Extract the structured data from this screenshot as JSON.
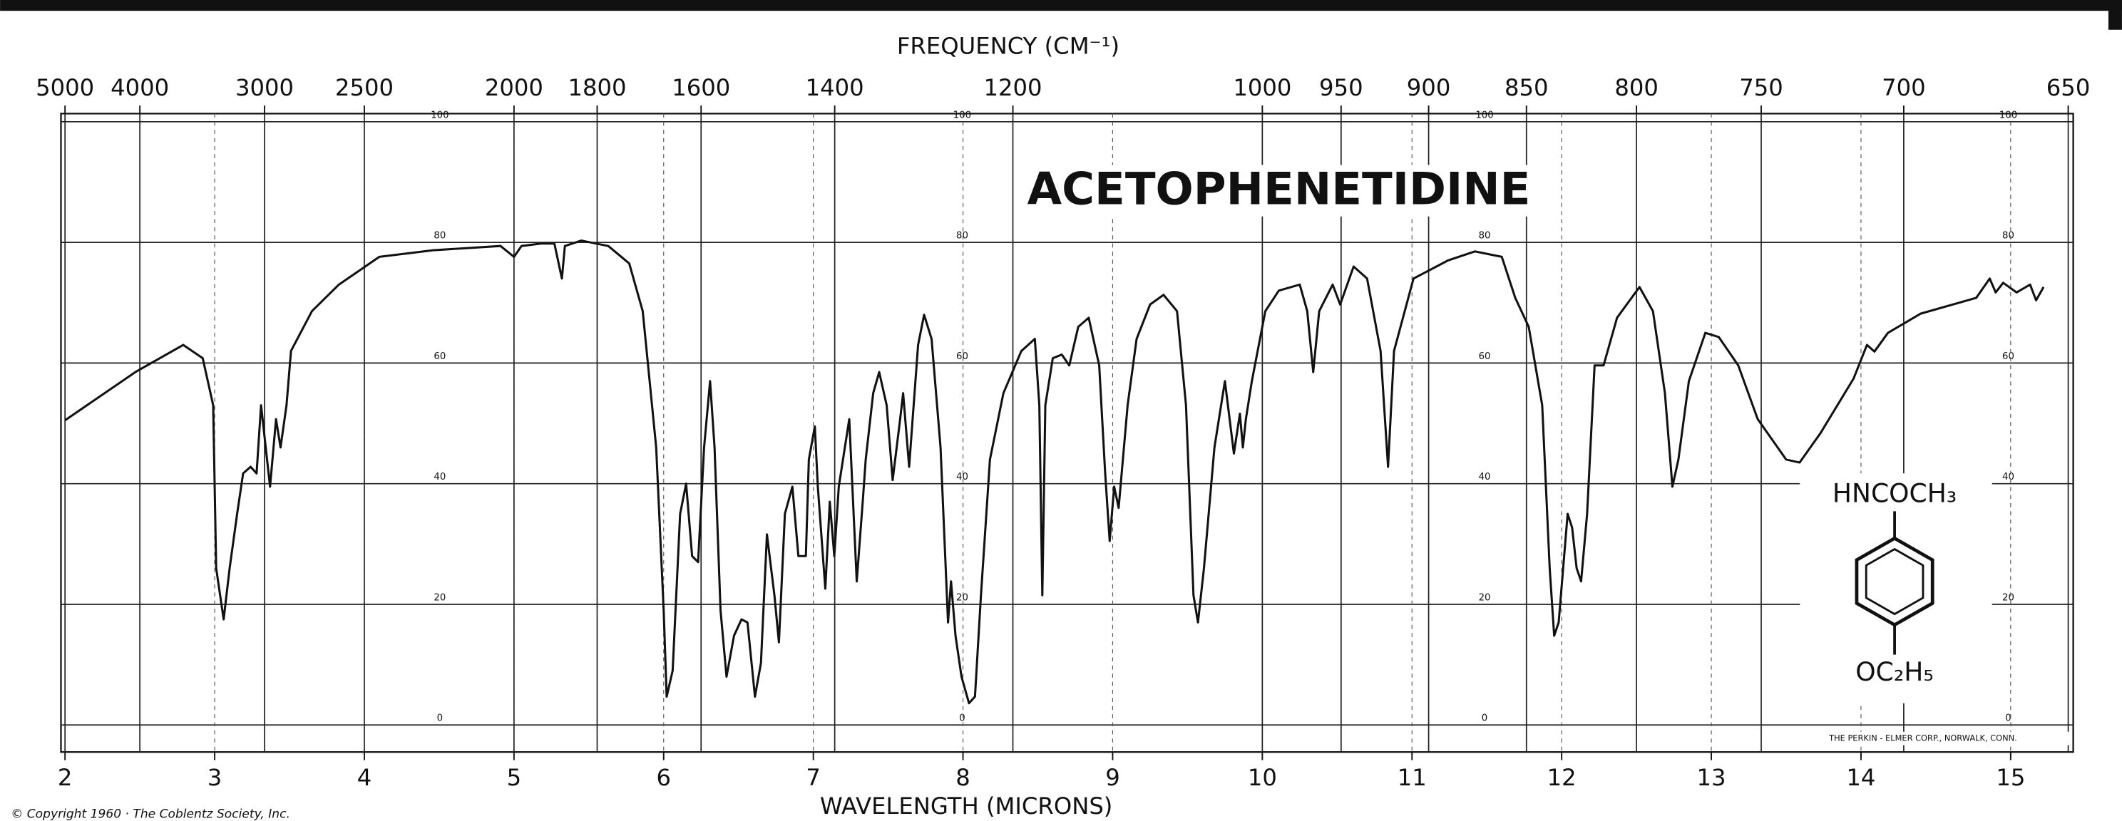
{
  "chart_data": {
    "type": "line",
    "title": "ACETOPHENETIDINE",
    "xlabel": "WAVELENGTH (MICRONS)",
    "x2label": "FREQUENCY (CM⁻¹)",
    "xlim": [
      2,
      15.4
    ],
    "ylim": [
      0,
      100
    ],
    "xticks": [
      2,
      3,
      4,
      5,
      6,
      7,
      8,
      9,
      10,
      11,
      12,
      13,
      14,
      15
    ],
    "x2ticks": [
      5000,
      4000,
      3000,
      2500,
      2000,
      1800,
      1600,
      1400,
      1200,
      1000,
      950,
      900,
      850,
      800,
      750,
      700,
      650
    ],
    "yticks": [
      0,
      20,
      40,
      60,
      80,
      100
    ],
    "grid": true,
    "color": "#111111",
    "x": [
      2.0,
      2.47,
      2.79,
      2.92,
      2.99,
      3.01,
      3.06,
      3.1,
      3.15,
      3.19,
      3.24,
      3.28,
      3.31,
      3.35,
      3.37,
      3.41,
      3.44,
      3.48,
      3.51,
      3.65,
      3.83,
      4.1,
      4.46,
      4.91,
      5.0,
      5.05,
      5.18,
      5.27,
      5.32,
      5.34,
      5.45,
      5.63,
      5.77,
      5.86,
      5.95,
      6.0,
      6.02,
      6.06,
      6.11,
      6.15,
      6.19,
      6.23,
      6.27,
      6.31,
      6.34,
      6.38,
      6.42,
      6.47,
      6.52,
      6.56,
      6.61,
      6.65,
      6.69,
      6.74,
      6.77,
      6.81,
      6.86,
      6.9,
      6.95,
      6.97,
      7.01,
      7.03,
      7.08,
      7.11,
      7.14,
      7.17,
      7.24,
      7.29,
      7.33,
      7.35,
      7.4,
      7.44,
      7.49,
      7.53,
      7.58,
      7.6,
      7.64,
      7.7,
      7.74,
      7.79,
      7.85,
      7.9,
      7.92,
      7.95,
      7.99,
      8.04,
      8.08,
      8.12,
      8.18,
      8.27,
      8.39,
      8.48,
      8.51,
      8.53,
      8.55,
      8.6,
      8.66,
      8.71,
      8.77,
      8.84,
      8.91,
      8.95,
      8.98,
      9.01,
      9.04,
      9.1,
      9.16,
      9.25,
      9.34,
      9.43,
      9.49,
      9.54,
      9.57,
      9.61,
      9.68,
      9.75,
      9.77,
      9.81,
      9.85,
      9.87,
      9.89,
      9.93,
      10.02,
      10.11,
      10.25,
      10.3,
      10.34,
      10.38,
      10.47,
      10.52,
      10.61,
      10.7,
      10.79,
      10.84,
      10.88,
      11.01,
      11.24,
      11.42,
      11.6,
      11.69,
      11.78,
      11.87,
      11.92,
      11.95,
      11.98,
      12.04,
      12.07,
      12.1,
      12.13,
      12.17,
      12.22,
      12.28,
      12.37,
      12.52,
      12.61,
      12.69,
      12.74,
      12.78,
      12.85,
      12.96,
      13.05,
      13.18,
      13.31,
      13.5,
      13.59,
      13.73,
      13.95,
      14.04,
      14.09,
      14.18,
      14.4,
      14.77,
      14.86,
      14.9,
      14.95,
      15.04,
      15.13,
      15.17,
      15.22
    ],
    "values": [
      50.5,
      58.5,
      63,
      60.8,
      53,
      26,
      17.5,
      26,
      35,
      41.7,
      42.8,
      41.7,
      53,
      44,
      39.5,
      50.7,
      46,
      53,
      62,
      68.6,
      73,
      77.6,
      78.7,
      79.4,
      77.6,
      79.4,
      79.8,
      79.8,
      74,
      79.4,
      80.3,
      79.4,
      76.5,
      68.6,
      46,
      19,
      4.7,
      9,
      35,
      40,
      28,
      27,
      46,
      57,
      46,
      19,
      8,
      14.8,
      17.5,
      17,
      4.7,
      10.3,
      31.6,
      21.5,
      13.7,
      35,
      39.5,
      28,
      28,
      44,
      49.5,
      39.5,
      22.6,
      37,
      28,
      39.5,
      50.7,
      23.8,
      37,
      44,
      55,
      58.5,
      53,
      40.6,
      50.7,
      55,
      42.8,
      63,
      68,
      64,
      46,
      17,
      23.8,
      14.8,
      8,
      3.6,
      4.7,
      21.5,
      44,
      55,
      62,
      64,
      53,
      21.5,
      53,
      60.8,
      61.4,
      59.6,
      66,
      67.5,
      59.6,
      41.7,
      30.5,
      39.5,
      36,
      53,
      64,
      69.7,
      71.3,
      68.6,
      53,
      21.5,
      17,
      26,
      46,
      57,
      53,
      45,
      51.6,
      46,
      50.7,
      57,
      68.6,
      72,
      73,
      68.6,
      58.5,
      68.6,
      73,
      69.7,
      76,
      74,
      62,
      42.8,
      62,
      74,
      77,
      78.5,
      77.6,
      70.8,
      66,
      53,
      26,
      14.8,
      17,
      35,
      32.7,
      26,
      23.8,
      35,
      59.6,
      59.6,
      67.5,
      72.6,
      68.6,
      55,
      39.5,
      44,
      57,
      65,
      64.3,
      59.6,
      50.7,
      44,
      43.5,
      48.4,
      57.4,
      63,
      61.9,
      65,
      68.2,
      70.8,
      74,
      71.7,
      73.3,
      71.7,
      73,
      70.4,
      72.6
    ],
    "structure": {
      "top": "HNCOCH₃",
      "bottom": "OC₂H₅"
    },
    "credit": "THE PERKIN - ELMER CORP., NORWALK, CONN.",
    "copyright": "© Copyright 1960 · The Coblentz Society, Inc."
  }
}
